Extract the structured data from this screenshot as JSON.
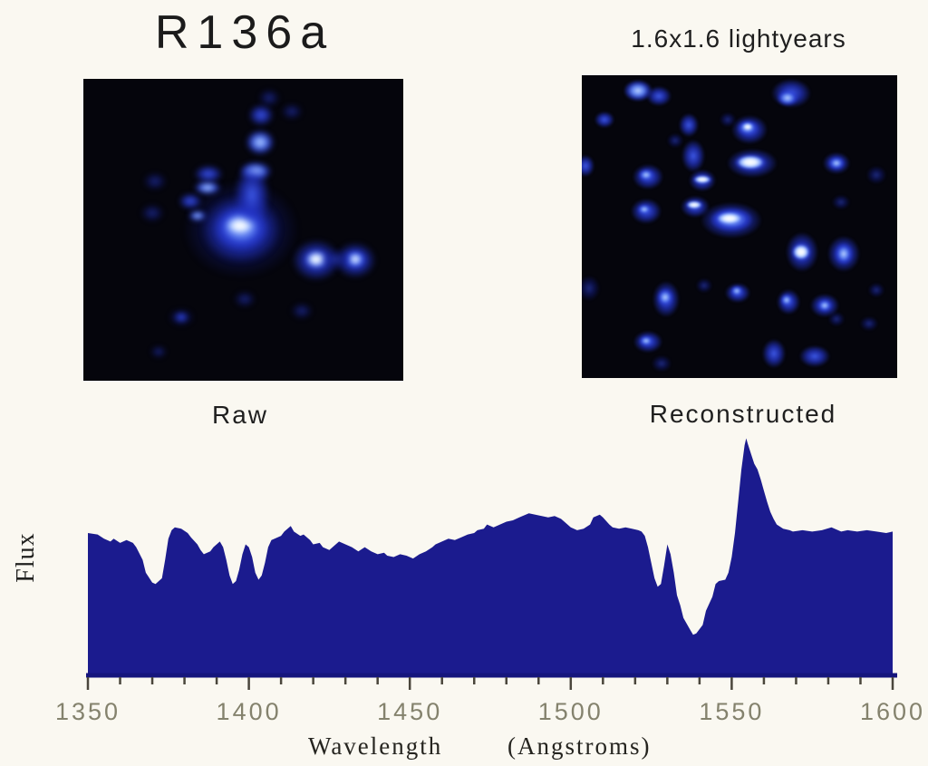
{
  "colors": {
    "background": "#faf8f1",
    "spectrum_fill": "#1b1b8e",
    "axis_line": "#15157d",
    "tick_color": "#4a463c",
    "tick_label_color": "#84826d",
    "star_image_background": "#05050c"
  },
  "header": {
    "title": "R136a",
    "scale_label": "1.6x1.6 lightyears"
  },
  "panels": {
    "raw": {
      "caption": "Raw",
      "stars": [
        [
          174,
          166,
          64,
          54,
          1
        ],
        [
          174,
          166,
          44,
          38,
          2
        ],
        [
          174,
          164,
          30,
          24,
          3
        ],
        [
          173,
          162,
          20,
          13,
          4
        ],
        [
          195,
          70,
          16,
          14,
          3
        ],
        [
          190,
          102,
          18,
          11,
          3
        ],
        [
          186,
          128,
          20,
          34,
          2
        ],
        [
          196,
          40,
          14,
          12,
          2
        ],
        [
          205,
          21,
          12,
          10,
          1
        ],
        [
          138,
          105,
          16,
          10,
          2
        ],
        [
          137,
          120,
          15,
          8,
          3
        ],
        [
          126,
          151,
          10,
          6,
          3
        ],
        [
          118,
          135,
          13,
          9,
          2
        ],
        [
          79,
          113,
          13,
          10,
          1
        ],
        [
          76,
          148,
          13,
          10,
          1
        ],
        [
          83,
          301,
          9,
          7,
          1
        ],
        [
          257,
          200,
          27,
          23,
          2
        ],
        [
          257,
          199,
          13,
          10,
          4
        ],
        [
          300,
          200,
          23,
          20,
          2
        ],
        [
          300,
          199,
          12,
          10,
          3
        ],
        [
          300,
          199,
          7,
          6,
          4
        ],
        [
          278,
          199,
          18,
          11,
          1
        ],
        [
          230,
          36,
          12,
          9,
          1
        ],
        [
          108,
          263,
          14,
          10,
          1
        ],
        [
          108,
          263,
          7,
          5,
          2
        ],
        [
          241,
          256,
          12,
          9,
          1
        ],
        [
          178,
          243,
          12,
          9,
          1
        ]
      ]
    },
    "reconstructed": {
      "caption": "Reconstructed",
      "stars": [
        [
          62,
          17,
          16,
          12,
          3
        ],
        [
          85,
          23,
          14,
          11,
          2
        ],
        [
          231,
          20,
          22,
          16,
          2
        ],
        [
          227,
          25,
          12,
          9,
          3
        ],
        [
          118,
          55,
          11,
          13,
          2
        ],
        [
          185,
          60,
          20,
          16,
          2
        ],
        [
          183,
          58,
          12,
          9,
          3
        ],
        [
          183,
          57,
          7,
          5,
          4
        ],
        [
          25,
          49,
          11,
          9,
          2
        ],
        [
          103,
          72,
          9,
          8,
          1
        ],
        [
          161,
          49,
          9,
          8,
          1
        ],
        [
          4,
          100,
          10,
          12,
          2
        ],
        [
          73,
          112,
          17,
          14,
          2
        ],
        [
          71,
          110,
          9,
          7,
          3
        ],
        [
          123,
          89,
          13,
          18,
          2
        ],
        [
          133,
          116,
          15,
          12,
          2
        ],
        [
          133,
          115,
          11,
          5,
          4
        ],
        [
          188,
          97,
          28,
          16,
          2
        ],
        [
          186,
          96,
          18,
          9,
          4
        ],
        [
          281,
          97,
          15,
          12,
          2
        ],
        [
          281,
          97,
          9,
          7,
          3
        ],
        [
          325,
          110,
          11,
          10,
          1
        ],
        [
          286,
          140,
          10,
          8,
          1
        ],
        [
          71,
          150,
          17,
          14,
          2
        ],
        [
          69,
          148,
          8,
          6,
          3
        ],
        [
          125,
          145,
          16,
          12,
          2
        ],
        [
          124,
          143,
          10,
          5,
          4
        ],
        [
          165,
          160,
          34,
          20,
          2
        ],
        [
          165,
          159,
          24,
          13,
          3
        ],
        [
          163,
          158,
          17,
          8,
          4
        ],
        [
          243,
          195,
          18,
          22,
          2
        ],
        [
          242,
          195,
          11,
          10,
          4
        ],
        [
          289,
          197,
          18,
          20,
          2
        ],
        [
          289,
          197,
          10,
          12,
          3
        ],
        [
          8,
          235,
          12,
          14,
          1
        ],
        [
          93,
          247,
          15,
          20,
          2
        ],
        [
          92,
          245,
          9,
          10,
          3
        ],
        [
          135,
          232,
          9,
          8,
          1
        ],
        [
          172,
          240,
          14,
          11,
          2
        ],
        [
          171,
          238,
          7,
          6,
          3
        ],
        [
          228,
          250,
          13,
          14,
          2
        ],
        [
          226,
          248,
          7,
          7,
          3
        ],
        [
          268,
          254,
          16,
          13,
          2
        ],
        [
          268,
          254,
          8,
          7,
          3
        ],
        [
          281,
          269,
          9,
          8,
          1
        ],
        [
          317,
          274,
          10,
          8,
          1
        ],
        [
          325,
          237,
          9,
          8,
          1
        ],
        [
          73,
          294,
          16,
          12,
          2
        ],
        [
          71,
          293,
          8,
          6,
          3
        ],
        [
          212,
          307,
          13,
          16,
          2
        ],
        [
          257,
          310,
          17,
          12,
          2
        ],
        [
          88,
          318,
          11,
          9,
          1
        ]
      ]
    }
  },
  "chart_data": {
    "type": "area",
    "title": "",
    "ylabel": "Flux",
    "xlabel_word": "Wavelength",
    "xlabel_unit": "(Angstroms)",
    "xlim": [
      1350,
      1600
    ],
    "ylim": [
      0,
      1.8
    ],
    "x_major_ticks": [
      1350,
      1400,
      1450,
      1500,
      1550,
      1600
    ],
    "x_minor_step": 10,
    "grid": false,
    "legend": false,
    "series": [
      {
        "name": "flux",
        "points": [
          [
            1350,
            1.0
          ],
          [
            1353,
            0.99
          ],
          [
            1355,
            0.96
          ],
          [
            1357,
            0.94
          ],
          [
            1358,
            0.96
          ],
          [
            1360,
            0.93
          ],
          [
            1362,
            0.95
          ],
          [
            1364,
            0.93
          ],
          [
            1365,
            0.9
          ],
          [
            1367,
            0.81
          ],
          [
            1368,
            0.72
          ],
          [
            1370,
            0.65
          ],
          [
            1371,
            0.64
          ],
          [
            1373,
            0.68
          ],
          [
            1374,
            0.81
          ],
          [
            1375,
            0.96
          ],
          [
            1376,
            1.02
          ],
          [
            1377,
            1.04
          ],
          [
            1379,
            1.03
          ],
          [
            1381,
            1.0
          ],
          [
            1382,
            0.97
          ],
          [
            1384,
            0.92
          ],
          [
            1385,
            0.88
          ],
          [
            1386,
            0.85
          ],
          [
            1388,
            0.87
          ],
          [
            1389,
            0.9
          ],
          [
            1391,
            0.94
          ],
          [
            1392,
            0.9
          ],
          [
            1393,
            0.81
          ],
          [
            1394,
            0.7
          ],
          [
            1395,
            0.64
          ],
          [
            1396,
            0.66
          ],
          [
            1397,
            0.74
          ],
          [
            1398,
            0.85
          ],
          [
            1399,
            0.92
          ],
          [
            1400,
            0.9
          ],
          [
            1401,
            0.83
          ],
          [
            1402,
            0.72
          ],
          [
            1403,
            0.67
          ],
          [
            1404,
            0.7
          ],
          [
            1405,
            0.79
          ],
          [
            1406,
            0.9
          ],
          [
            1407,
            0.95
          ],
          [
            1408,
            0.96
          ],
          [
            1410,
            0.98
          ],
          [
            1411,
            1.01
          ],
          [
            1413,
            1.05
          ],
          [
            1414,
            1.01
          ],
          [
            1416,
            0.98
          ],
          [
            1417,
            0.99
          ],
          [
            1419,
            0.95
          ],
          [
            1420,
            0.92
          ],
          [
            1422,
            0.93
          ],
          [
            1423,
            0.9
          ],
          [
            1425,
            0.88
          ],
          [
            1427,
            0.92
          ],
          [
            1428,
            0.94
          ],
          [
            1430,
            0.92
          ],
          [
            1432,
            0.9
          ],
          [
            1434,
            0.87
          ],
          [
            1436,
            0.9
          ],
          [
            1438,
            0.87
          ],
          [
            1440,
            0.85
          ],
          [
            1442,
            0.86
          ],
          [
            1443,
            0.84
          ],
          [
            1445,
            0.83
          ],
          [
            1447,
            0.85
          ],
          [
            1449,
            0.84
          ],
          [
            1451,
            0.82
          ],
          [
            1453,
            0.85
          ],
          [
            1455,
            0.87
          ],
          [
            1457,
            0.9
          ],
          [
            1458,
            0.92
          ],
          [
            1460,
            0.94
          ],
          [
            1462,
            0.96
          ],
          [
            1464,
            0.95
          ],
          [
            1466,
            0.97
          ],
          [
            1468,
            0.99
          ],
          [
            1470,
            1.0
          ],
          [
            1471,
            1.02
          ],
          [
            1473,
            1.03
          ],
          [
            1474,
            1.06
          ],
          [
            1476,
            1.04
          ],
          [
            1478,
            1.06
          ],
          [
            1480,
            1.08
          ],
          [
            1482,
            1.09
          ],
          [
            1484,
            1.11
          ],
          [
            1485,
            1.12
          ],
          [
            1487,
            1.14
          ],
          [
            1489,
            1.13
          ],
          [
            1491,
            1.12
          ],
          [
            1493,
            1.11
          ],
          [
            1495,
            1.12
          ],
          [
            1497,
            1.1
          ],
          [
            1498,
            1.08
          ],
          [
            1500,
            1.04
          ],
          [
            1502,
            1.02
          ],
          [
            1504,
            1.03
          ],
          [
            1506,
            1.06
          ],
          [
            1507,
            1.11
          ],
          [
            1509,
            1.13
          ],
          [
            1510,
            1.11
          ],
          [
            1512,
            1.06
          ],
          [
            1513,
            1.04
          ],
          [
            1515,
            1.03
          ],
          [
            1517,
            1.04
          ],
          [
            1519,
            1.03
          ],
          [
            1521,
            1.02
          ],
          [
            1522,
            1.01
          ],
          [
            1523,
            0.98
          ],
          [
            1524,
            0.9
          ],
          [
            1525,
            0.79
          ],
          [
            1526,
            0.68
          ],
          [
            1527,
            0.62
          ],
          [
            1528,
            0.64
          ],
          [
            1529,
            0.77
          ],
          [
            1530,
            0.92
          ],
          [
            1531,
            0.85
          ],
          [
            1532,
            0.72
          ],
          [
            1533,
            0.56
          ],
          [
            1534,
            0.49
          ],
          [
            1535,
            0.4
          ],
          [
            1537,
            0.32
          ],
          [
            1538,
            0.28
          ],
          [
            1539,
            0.29
          ],
          [
            1541,
            0.35
          ],
          [
            1542,
            0.45
          ],
          [
            1544,
            0.55
          ],
          [
            1545,
            0.64
          ],
          [
            1546,
            0.66
          ],
          [
            1548,
            0.67
          ],
          [
            1549,
            0.72
          ],
          [
            1550,
            0.83
          ],
          [
            1551,
            1.0
          ],
          [
            1552,
            1.22
          ],
          [
            1553,
            1.45
          ],
          [
            1554,
            1.62
          ],
          [
            1554.5,
            1.67
          ],
          [
            1555,
            1.63
          ],
          [
            1556,
            1.56
          ],
          [
            1557,
            1.49
          ],
          [
            1558,
            1.45
          ],
          [
            1559,
            1.38
          ],
          [
            1560,
            1.3
          ],
          [
            1561,
            1.22
          ],
          [
            1562,
            1.15
          ],
          [
            1563,
            1.1
          ],
          [
            1564,
            1.06
          ],
          [
            1566,
            1.03
          ],
          [
            1568,
            1.02
          ],
          [
            1569,
            1.01
          ],
          [
            1572,
            1.02
          ],
          [
            1575,
            1.01
          ],
          [
            1578,
            1.02
          ],
          [
            1581,
            1.04
          ],
          [
            1584,
            1.01
          ],
          [
            1586,
            1.02
          ],
          [
            1589,
            1.01
          ],
          [
            1592,
            1.02
          ],
          [
            1595,
            1.01
          ],
          [
            1598,
            1.0
          ],
          [
            1600,
            1.01
          ]
        ]
      }
    ]
  }
}
